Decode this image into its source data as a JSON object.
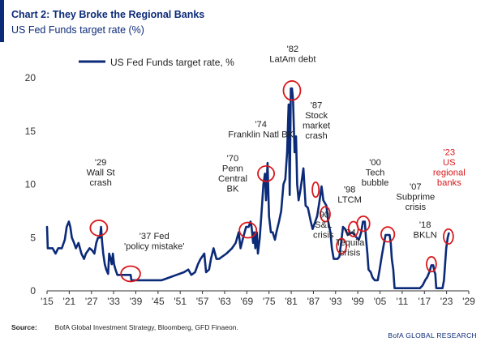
{
  "header": {
    "title": "Chart 2: They Broke the Regional Banks",
    "subtitle": "US Fed Funds target rate (%)"
  },
  "footer": {
    "source_label": "Source:",
    "source_text": "BofA Global Investment Strategy, Bloomberg, GFD Finaeon.",
    "brand": "BofA GLOBAL RESEARCH"
  },
  "colors": {
    "line": "#0b2a78",
    "circle": "#d9181c",
    "highlight_text": "#d9181c",
    "axis": "#333333"
  },
  "chart_data": {
    "type": "line",
    "legend": {
      "label": "US Fed Funds target rate, %",
      "placement": "top-left"
    },
    "xlim": [
      1915,
      2029
    ],
    "ylim": [
      0,
      20
    ],
    "grid": false,
    "x_ticks": [
      1915,
      1921,
      1927,
      1933,
      1939,
      1945,
      1951,
      1957,
      1963,
      1969,
      1975,
      1981,
      1987,
      1993,
      1999,
      2005,
      2011,
      2017,
      2023,
      2029
    ],
    "x_tick_labels": [
      "'15",
      "'21",
      "'27",
      "'33",
      "'39",
      "'45",
      "'51",
      "'57",
      "'63",
      "'69",
      "'75",
      "'81",
      "'87",
      "'93",
      "'99",
      "'05",
      "'11",
      "'17",
      "'23",
      "'29"
    ],
    "y_ticks": [
      0,
      5,
      10,
      15,
      20
    ],
    "y_tick_labels": [
      "0",
      "5",
      "10",
      "15",
      "20"
    ],
    "series": [
      {
        "name": "US Fed Funds target rate, %",
        "points": [
          [
            1915.0,
            6.0
          ],
          [
            1915.2,
            4.0
          ],
          [
            1916.5,
            4.0
          ],
          [
            1917.3,
            3.5
          ],
          [
            1918.0,
            4.0
          ],
          [
            1919.0,
            4.0
          ],
          [
            1919.8,
            4.8
          ],
          [
            1920.3,
            6.0
          ],
          [
            1920.9,
            6.5
          ],
          [
            1921.3,
            6.0
          ],
          [
            1921.7,
            5.0
          ],
          [
            1922.3,
            4.5
          ],
          [
            1922.8,
            4.0
          ],
          [
            1923.5,
            4.5
          ],
          [
            1924.3,
            3.5
          ],
          [
            1925.0,
            3.0
          ],
          [
            1925.5,
            3.5
          ],
          [
            1926.5,
            4.0
          ],
          [
            1927.2,
            3.8
          ],
          [
            1927.8,
            3.5
          ],
          [
            1928.3,
            4.5
          ],
          [
            1928.8,
            5.0
          ],
          [
            1929.3,
            5.0
          ],
          [
            1929.6,
            6.0
          ],
          [
            1929.9,
            4.5
          ],
          [
            1930.2,
            3.5
          ],
          [
            1930.6,
            2.5
          ],
          [
            1931.0,
            2.0
          ],
          [
            1931.5,
            1.6
          ],
          [
            1931.8,
            3.5
          ],
          [
            1932.2,
            3.0
          ],
          [
            1932.5,
            2.5
          ],
          [
            1932.8,
            3.5
          ],
          [
            1933.1,
            2.5
          ],
          [
            1933.5,
            2.0
          ],
          [
            1934.0,
            1.5
          ],
          [
            1936.0,
            1.5
          ],
          [
            1937.6,
            1.5
          ],
          [
            1937.8,
            1.0
          ],
          [
            1942.0,
            1.0
          ],
          [
            1946.0,
            1.0
          ],
          [
            1948.0,
            1.25
          ],
          [
            1950.0,
            1.5
          ],
          [
            1952.0,
            1.75
          ],
          [
            1953.2,
            2.0
          ],
          [
            1954.0,
            1.5
          ],
          [
            1955.0,
            1.75
          ],
          [
            1955.8,
            2.5
          ],
          [
            1956.5,
            3.0
          ],
          [
            1957.5,
            3.5
          ],
          [
            1958.0,
            1.75
          ],
          [
            1958.8,
            2.0
          ],
          [
            1959.3,
            3.0
          ],
          [
            1960.0,
            4.0
          ],
          [
            1960.8,
            3.0
          ],
          [
            1961.5,
            3.0
          ],
          [
            1963.5,
            3.5
          ],
          [
            1965.0,
            4.0
          ],
          [
            1966.0,
            4.5
          ],
          [
            1966.8,
            5.5
          ],
          [
            1967.3,
            4.0
          ],
          [
            1968.0,
            5.0
          ],
          [
            1968.8,
            6.0
          ],
          [
            1969.5,
            6.0
          ],
          [
            1970.0,
            6.5
          ],
          [
            1970.3,
            6.0
          ],
          [
            1970.7,
            4.5
          ],
          [
            1971.0,
            5.5
          ],
          [
            1971.3,
            4.0
          ],
          [
            1971.7,
            5.5
          ],
          [
            1972.0,
            3.5
          ],
          [
            1972.5,
            5.0
          ],
          [
            1973.0,
            7.5
          ],
          [
            1973.5,
            10.0
          ],
          [
            1973.9,
            11.0
          ],
          [
            1974.2,
            8.5
          ],
          [
            1974.6,
            12.0
          ],
          [
            1975.0,
            7.0
          ],
          [
            1975.5,
            5.5
          ],
          [
            1976.0,
            5.5
          ],
          [
            1976.6,
            4.8
          ],
          [
            1977.0,
            5.5
          ],
          [
            1977.7,
            6.5
          ],
          [
            1978.3,
            7.5
          ],
          [
            1978.9,
            10.0
          ],
          [
            1979.4,
            10.5
          ],
          [
            1979.9,
            13.0
          ],
          [
            1980.3,
            17.5
          ],
          [
            1980.6,
            9.0
          ],
          [
            1980.9,
            19.0
          ],
          [
            1981.2,
            19.0
          ],
          [
            1981.5,
            18.0
          ],
          [
            1981.9,
            13.0
          ],
          [
            1982.3,
            14.5
          ],
          [
            1982.6,
            10.0
          ],
          [
            1983.0,
            8.5
          ],
          [
            1983.5,
            9.5
          ],
          [
            1984.3,
            11.5
          ],
          [
            1984.9,
            8.0
          ],
          [
            1985.5,
            7.8
          ],
          [
            1986.3,
            6.5
          ],
          [
            1986.8,
            5.8
          ],
          [
            1987.5,
            6.5
          ],
          [
            1988.0,
            7.0
          ],
          [
            1988.6,
            8.3
          ],
          [
            1989.2,
            9.8
          ],
          [
            1989.7,
            8.5
          ],
          [
            1990.5,
            8.0
          ],
          [
            1991.0,
            6.5
          ],
          [
            1991.6,
            5.5
          ],
          [
            1992.0,
            4.0
          ],
          [
            1992.5,
            3.0
          ],
          [
            1993.5,
            3.0
          ],
          [
            1994.0,
            3.2
          ],
          [
            1994.5,
            4.5
          ],
          [
            1995.0,
            6.0
          ],
          [
            1995.6,
            5.8
          ],
          [
            1996.3,
            5.25
          ],
          [
            1997.5,
            5.5
          ],
          [
            1998.7,
            5.0
          ],
          [
            1999.3,
            4.8
          ],
          [
            1999.9,
            5.5
          ],
          [
            2000.4,
            6.5
          ],
          [
            2000.9,
            6.5
          ],
          [
            2001.2,
            5.0
          ],
          [
            2001.6,
            3.5
          ],
          [
            2001.9,
            2.0
          ],
          [
            2002.5,
            1.75
          ],
          [
            2003.0,
            1.25
          ],
          [
            2003.6,
            1.0
          ],
          [
            2004.4,
            1.0
          ],
          [
            2004.9,
            2.0
          ],
          [
            2005.5,
            3.3
          ],
          [
            2006.0,
            4.3
          ],
          [
            2006.5,
            5.25
          ],
          [
            2007.6,
            5.25
          ],
          [
            2007.9,
            4.5
          ],
          [
            2008.2,
            3.0
          ],
          [
            2008.6,
            2.0
          ],
          [
            2008.95,
            0.25
          ],
          [
            2015.8,
            0.25
          ],
          [
            2016.5,
            0.5
          ],
          [
            2017.2,
            1.0
          ],
          [
            2017.8,
            1.3
          ],
          [
            2018.4,
            1.8
          ],
          [
            2018.9,
            2.4
          ],
          [
            2019.4,
            2.4
          ],
          [
            2019.7,
            1.8
          ],
          [
            2019.95,
            1.6
          ],
          [
            2020.2,
            0.25
          ],
          [
            2021.9,
            0.25
          ],
          [
            2022.3,
            1.0
          ],
          [
            2022.6,
            2.5
          ],
          [
            2022.9,
            4.0
          ],
          [
            2023.3,
            5.0
          ],
          [
            2023.6,
            5.4
          ]
        ]
      }
    ],
    "annotations": [
      {
        "lines": [
          "'29",
          "Wall St",
          "crash"
        ],
        "x": 1929,
        "y": 5.9,
        "rx": 2.3,
        "ry": 0.72,
        "label_x": 1929.5,
        "label_y": 9.9,
        "anchor": "middle",
        "highlight": false
      },
      {
        "lines": [
          "'37 Fed",
          "'policy mistake'"
        ],
        "x": 1937.6,
        "y": 1.6,
        "rx": 2.6,
        "ry": 0.72,
        "label_x": 1944,
        "label_y": 3.9,
        "anchor": "middle",
        "highlight": false
      },
      {
        "lines": [
          "'70",
          "Penn",
          "Central",
          "BK"
        ],
        "x": 1969.3,
        "y": 5.7,
        "rx": 2.3,
        "ry": 0.72,
        "label_x": 1965.2,
        "label_y": 9.3,
        "anchor": "middle",
        "highlight": false
      },
      {
        "lines": [
          "'74",
          "Franklin Natl BK"
        ],
        "x": 1974.2,
        "y": 11.0,
        "rx": 2.2,
        "ry": 0.72,
        "label_x": 1972.8,
        "label_y": 14.4,
        "anchor": "middle",
        "highlight": false
      },
      {
        "lines": [
          "'82",
          "LatAm debt"
        ],
        "x": 1981.2,
        "y": 18.8,
        "rx": 2.3,
        "ry": 0.9,
        "label_x": 1981.4,
        "label_y": 21.5,
        "anchor": "middle",
        "highlight": false
      },
      {
        "lines": [
          "'87",
          "Stock",
          "market",
          "crash"
        ],
        "x": 1987.6,
        "y": 9.5,
        "rx": 0.9,
        "ry": 0.7,
        "label_x": 1987.8,
        "label_y": 14.3,
        "anchor": "middle",
        "highlight": false
      },
      {
        "lines": [
          "'90",
          "S&L",
          "crisis"
        ],
        "x": 1990.2,
        "y": 7.2,
        "rx": 1.3,
        "ry": 0.7,
        "label_x": 1989.7,
        "label_y": 5.0,
        "anchor": "middle",
        "highlight": false
      },
      {
        "lines": [
          "'98",
          "LTCM"
        ],
        "x": 1997.8,
        "y": 5.8,
        "rx": 1.3,
        "ry": 0.7,
        "label_x": 1996.8,
        "label_y": 8.3,
        "anchor": "middle",
        "highlight": false
      },
      {
        "lines": [
          "'94",
          "Tequila",
          "crisis"
        ],
        "x": 1994.6,
        "y": 4.2,
        "rx": 1.3,
        "ry": 0.7,
        "label_x": 1996.9,
        "label_y": 3.3,
        "anchor": "middle",
        "highlight": false
      },
      {
        "lines": [
          "'00",
          "Tech",
          "bubble"
        ],
        "x": 2000.5,
        "y": 6.3,
        "rx": 1.7,
        "ry": 0.7,
        "label_x": 2003.7,
        "label_y": 9.9,
        "anchor": "middle",
        "highlight": false
      },
      {
        "lines": [
          "'07",
          "Subprime",
          "crisis"
        ],
        "x": 2007.1,
        "y": 5.3,
        "rx": 1.8,
        "ry": 0.7,
        "label_x": 2014.6,
        "label_y": 7.6,
        "anchor": "middle",
        "highlight": false
      },
      {
        "lines": [
          "'18",
          "BKLN"
        ],
        "x": 2018.9,
        "y": 2.5,
        "rx": 1.3,
        "ry": 0.7,
        "label_x": 2017.2,
        "label_y": 5.0,
        "anchor": "middle",
        "highlight": false
      },
      {
        "lines": [
          "'23",
          "US",
          "regional",
          "banks"
        ],
        "x": 2023.5,
        "y": 5.1,
        "rx": 1.3,
        "ry": 0.7,
        "label_x": 2023.7,
        "label_y": 9.9,
        "anchor": "middle",
        "highlight": true
      }
    ]
  }
}
